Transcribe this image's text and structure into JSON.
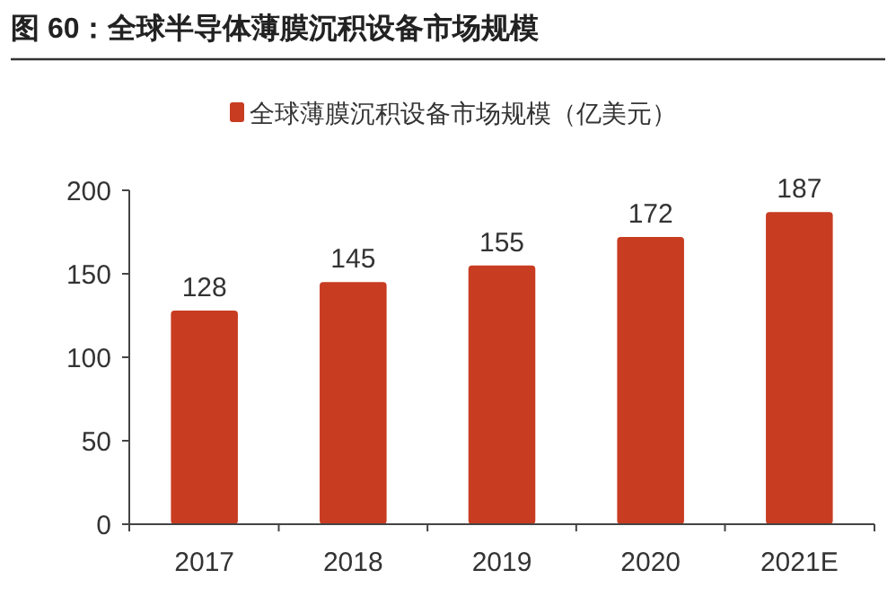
{
  "chart_data": {
    "type": "bar",
    "title": "图 60：全球半导体薄膜沉积设备市场规模",
    "categories": [
      "2017",
      "2018",
      "2019",
      "2020",
      "2021E"
    ],
    "series": [
      {
        "name": "全球薄膜沉积设备市场规模（亿美元）",
        "color": "#c83c22",
        "values": [
          128,
          145,
          155,
          172,
          187
        ]
      }
    ],
    "ylim": [
      0,
      200
    ],
    "yticks": [
      0,
      50,
      100,
      150,
      200
    ],
    "data_labels": true,
    "legend": "top",
    "grid": false
  }
}
